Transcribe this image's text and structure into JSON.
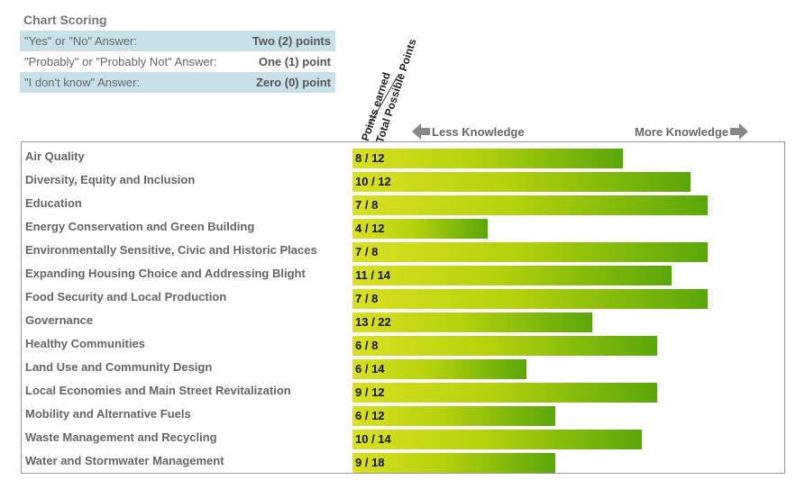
{
  "scoring": {
    "title": "Chart Scoring",
    "rows": [
      {
        "answer": "\"Yes\" or \"No\" Answer:",
        "points": "Two (2) points"
      },
      {
        "answer": "\"Probably\" or \"Probably Not\" Answer:",
        "points": "One (1) point"
      },
      {
        "answer": "\"I don't know\" Answer:",
        "points": "Zero (0) point"
      }
    ]
  },
  "headers": {
    "points_earned": "Points earned",
    "total_possible": "Total Possible Points"
  },
  "legend": {
    "less": "Less Knowledge",
    "more": "More Knowledge"
  },
  "colors": {
    "bar_start": "#d9e021",
    "bar_end": "#5aa70a",
    "scoring_shade": "#c8e1e8"
  },
  "chart_data": {
    "type": "bar",
    "orientation": "horizontal",
    "categories": [
      "Air Quality",
      "Diversity, Equity and Inclusion",
      "Education",
      "Energy Conservation and Green Building",
      "Environmentally Sensitive, Civic and Historic Places",
      "Expanding Housing Choice and Addressing Blight",
      "Food Security and Local Production",
      "Governance",
      "Healthy Communities",
      "Land Use and Community Design",
      "Local Economies and Main Street Revitalization",
      "Mobility and Alternative Fuels",
      "Waste Management and Recycling",
      "Water and Stormwater Management"
    ],
    "earned": [
      8,
      10,
      7,
      4,
      7,
      11,
      7,
      13,
      6,
      6,
      9,
      6,
      10,
      9
    ],
    "possible": [
      12,
      12,
      8,
      12,
      8,
      14,
      8,
      22,
      8,
      14,
      12,
      12,
      14,
      18
    ],
    "labels": [
      "8 / 12",
      "10 / 12",
      "7 / 8",
      "4 / 12",
      "7 / 8",
      "11 / 14",
      "7 / 8",
      "13 / 22",
      "6 / 8",
      "6 / 14",
      "9 / 12",
      "6 / 12",
      "10 / 14",
      "9 / 18"
    ],
    "xlim": [
      0,
      1
    ]
  }
}
